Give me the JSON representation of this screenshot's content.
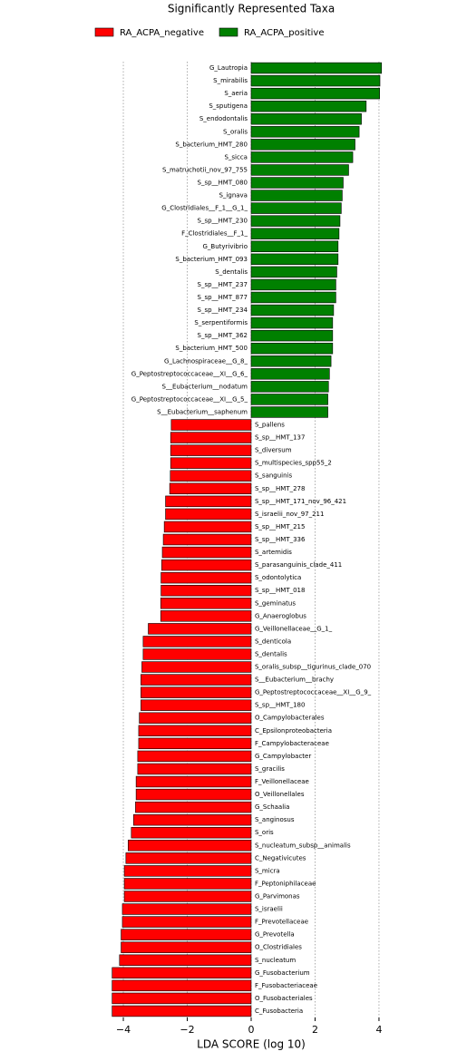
{
  "chart_data": {
    "type": "hbar",
    "title": "Significantly Represented Taxa",
    "xlabel": "LDA SCORE (log 10)",
    "categories": [
      "G_Lautropia",
      "S_mirabilis",
      "S_aeria",
      "S_sputigena",
      "S_endodontalis",
      "S_oralis",
      "S_bacterium_HMT_280",
      "S_sicca",
      "S_matruchotii_nov_97_755",
      "S_sp__HMT_080",
      "S_ignava",
      "G_Clostridiales__F_1__G_1_",
      "S_sp__HMT_230",
      "F_Clostridiales__F_1_",
      "G_Butyrivibrio",
      "S_bacterium_HMT_093",
      "S_dentalis",
      "S_sp__HMT_237",
      "S_sp__HMT_877",
      "S_sp__HMT_234",
      "S_serpentiformis",
      "S_sp__HMT_362",
      "S_bacterium_HMT_500",
      "G_Lachnospiraceae__G_8_",
      "G_Peptostreptococcaceae__XI__G_6_",
      "S__Eubacterium__nodatum",
      "G_Peptostreptococcaceae__XI__G_5_",
      "S__Eubacterium__saphenum",
      "S_pallens",
      "S_sp__HMT_137",
      "S_diversum",
      "S_multispecies_spp55_2",
      "S_sanguinis",
      "S_sp__HMT_278",
      "S_sp__HMT_171_nov_96_421",
      "S_israelii_nov_97_211",
      "S_sp__HMT_215",
      "S_sp__HMT_336",
      "S_artemidis",
      "S_parasanguinis_clade_411",
      "S_odontolytica",
      "S_sp__HMT_018",
      "S_geminatus",
      "G_Anaeroglobus",
      "G_Veillonellaceae__G_1_",
      "S_denticola",
      "S_dentalis",
      "S_oralis_subsp__tigurinus_clade_070",
      "S__Eubacterium__brachy",
      "G_Peptostreptococcaceae__XI__G_9_",
      "S_sp__HMT_180",
      "O_Campylobacterales",
      "C_Epsilonproteobacteria",
      "F_Campylobacteraceae",
      "G_Campylobacter",
      "S_gracilis",
      "F_Veillonellaceae",
      "O_Veillonellales",
      "G_Schaalia",
      "S_anginosus",
      "S_oris",
      "S_nucleatum_subsp__animalis",
      "C_Negativicutes",
      "S_micra",
      "F_Peptoniphilaceae",
      "G_Parvimonas",
      "S_israelii",
      "F_Prevotellaceae",
      "G_Prevotella",
      "O_Clostridiales",
      "S_nucleatum",
      "G_Fusobacterium",
      "F_Fusobacteriaceae",
      "O_Fusobacteriales",
      "C_Fusobacteria"
    ],
    "series": [
      {
        "name": "RA_ACPA_negative",
        "color": "#ff0000",
        "values": [
          null,
          null,
          null,
          null,
          null,
          null,
          null,
          null,
          null,
          null,
          null,
          null,
          null,
          null,
          null,
          null,
          null,
          null,
          null,
          null,
          null,
          null,
          null,
          null,
          null,
          null,
          null,
          null,
          -2.5,
          -2.52,
          -2.52,
          -2.52,
          -2.53,
          -2.55,
          -2.68,
          -2.68,
          -2.72,
          -2.75,
          -2.78,
          -2.8,
          -2.82,
          -2.82,
          -2.83,
          -2.83,
          -3.22,
          -3.38,
          -3.38,
          -3.42,
          -3.45,
          -3.45,
          -3.45,
          -3.5,
          -3.52,
          -3.52,
          -3.55,
          -3.55,
          -3.6,
          -3.6,
          -3.62,
          -3.68,
          -3.75,
          -3.85,
          -3.92,
          -3.97,
          -3.97,
          -3.97,
          -4.03,
          -4.03,
          -4.07,
          -4.07,
          -4.12,
          -4.35,
          -4.35,
          -4.35,
          -4.35
        ]
      },
      {
        "name": "RA_ACPA_positive",
        "color": "#008000",
        "values": [
          4.08,
          4.03,
          4.02,
          3.6,
          3.45,
          3.38,
          3.25,
          3.18,
          3.05,
          2.88,
          2.85,
          2.82,
          2.78,
          2.75,
          2.72,
          2.72,
          2.68,
          2.65,
          2.65,
          2.58,
          2.55,
          2.55,
          2.55,
          2.5,
          2.45,
          2.42,
          2.4,
          2.4,
          null,
          null,
          null,
          null,
          null,
          null,
          null,
          null,
          null,
          null,
          null,
          null,
          null,
          null,
          null,
          null,
          null,
          null,
          null,
          null,
          null,
          null,
          null,
          null,
          null,
          null,
          null,
          null,
          null,
          null,
          null,
          null,
          null,
          null,
          null,
          null,
          null,
          null,
          null,
          null,
          null,
          null,
          null,
          null,
          null,
          null,
          null
        ]
      }
    ],
    "xlim": [
      -4.5,
      4.2
    ],
    "xticks": [
      {
        "value": -4,
        "label": "−4"
      },
      {
        "value": -2,
        "label": "−2"
      },
      0,
      2,
      4
    ],
    "grid": true
  }
}
